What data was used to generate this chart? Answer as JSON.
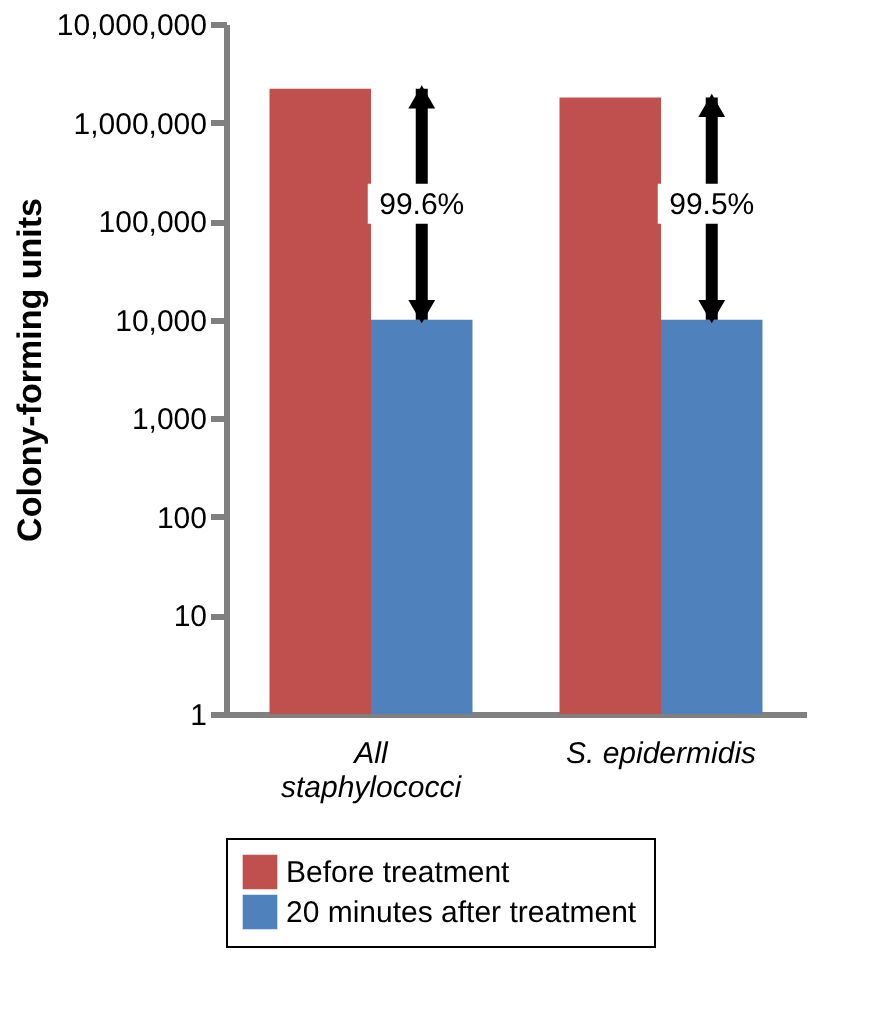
{
  "chart_data": {
    "type": "bar",
    "ylabel": "Colony-forming units",
    "categories": [
      "All staphylococci",
      "S. epidermidis"
    ],
    "series": [
      {
        "name": "Before treatment",
        "color": "#c0504d",
        "values": [
          2200000,
          1800000
        ]
      },
      {
        "name": "20 minutes after treatment",
        "color": "#4f81bd",
        "values": [
          10000,
          10000
        ]
      }
    ],
    "log": true,
    "ylim": [
      1,
      10000000
    ],
    "yticks": [
      {
        "value": 1,
        "label": "1"
      },
      {
        "value": 10,
        "label": "10"
      },
      {
        "value": 100,
        "label": "100"
      },
      {
        "value": 1000,
        "label": "1,000"
      },
      {
        "value": 10000,
        "label": "10,000"
      },
      {
        "value": 100000,
        "label": "100,000"
      },
      {
        "value": 1000000,
        "label": "1,000,000"
      },
      {
        "value": 10000000,
        "label": "10,000,000"
      }
    ],
    "annotations": [
      {
        "text": "99.6%",
        "x": "All staphylococci",
        "y": 150000
      },
      {
        "text": "99.5%",
        "x": "S. epidermidis",
        "y": 150000
      }
    ],
    "grid": false,
    "legend": "bottom"
  }
}
